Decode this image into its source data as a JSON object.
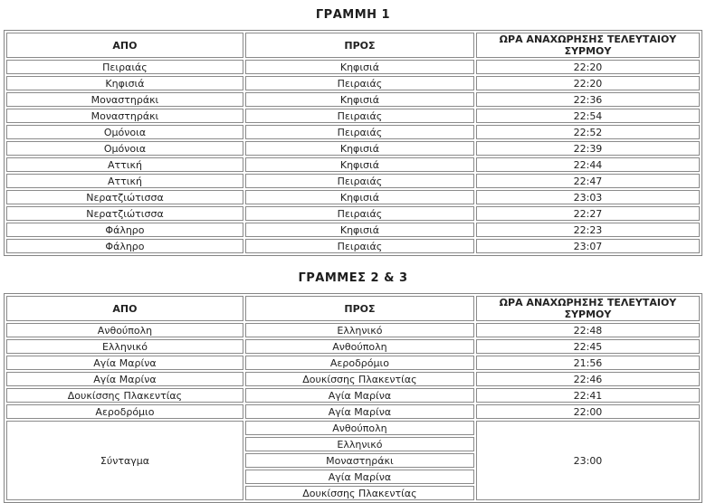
{
  "line1_table": {
    "title": "ΓΡΑΜΜΗ 1",
    "headers": {
      "from": "ΑΠΟ",
      "to": "ΠΡΟΣ",
      "time": "ΩΡΑ ΑΝΑΧΩΡΗΣΗΣ ΤΕΛΕΥΤΑΙΟΥ ΣΥΡΜΟΥ"
    },
    "rows": [
      [
        "Πειραιάς",
        "Κηφισιά",
        "22:20"
      ],
      [
        "Κηφισιά",
        "Πειραιάς",
        "22:20"
      ],
      [
        "Μοναστηράκι",
        "Κηφισιά",
        "22:36"
      ],
      [
        "Μοναστηράκι",
        "Πειραιάς",
        "22:54"
      ],
      [
        "Ομόνοια",
        "Πειραιάς",
        "22:52"
      ],
      [
        "Ομόνοια",
        "Κηφισιά",
        "22:39"
      ],
      [
        "Αττική",
        "Κηφισιά",
        "22:44"
      ],
      [
        "Αττική",
        "Πειραιάς",
        "22:47"
      ],
      [
        "Νερατζιώτισσα",
        "Κηφισιά",
        "23:03"
      ],
      [
        "Νερατζιώτισσα",
        "Πειραιάς",
        "22:27"
      ],
      [
        "Φάληρο",
        "Κηφισιά",
        "22:23"
      ],
      [
        "Φάληρο",
        "Πειραιάς",
        "23:07"
      ]
    ]
  },
  "lines23_table": {
    "title": "ΓΡΑΜΜΕΣ 2 & 3",
    "headers": {
      "from": "ΑΠΟ",
      "to": "ΠΡΟΣ",
      "time": "ΩΡΑ ΑΝΑΧΩΡΗΣΗΣ ΤΕΛΕΥΤΑΙΟΥ ΣΥΡΜΟΥ"
    },
    "rows": [
      [
        "Ανθούπολη",
        "Ελληνικό",
        "22:48"
      ],
      [
        "Ελληνικό",
        "Ανθούπολη",
        "22:45"
      ],
      [
        "Αγία Μαρίνα",
        "Αεροδρόμιο",
        "21:56"
      ],
      [
        "Αγία Μαρίνα",
        "Δουκίσσης Πλακεντίας",
        "22:46"
      ],
      [
        "Δουκίσσης Πλακεντίας",
        "Αγία Μαρίνα",
        "22:41"
      ],
      [
        "Αεροδρόμιο",
        "Αγία Μαρίνα",
        "22:00"
      ]
    ],
    "merged_row": {
      "from": "Σύνταγμα",
      "to_list": [
        "Ανθούπολη",
        "Ελληνικό",
        "Μοναστηράκι",
        "Αγία Μαρίνα",
        "Δουκίσσης Πλακεντίας"
      ],
      "time": "23:00"
    }
  }
}
